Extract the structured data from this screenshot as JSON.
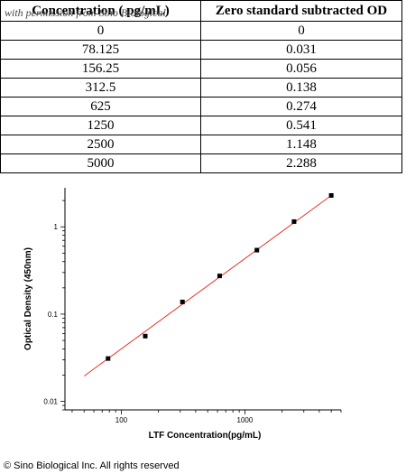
{
  "watermark": "with permission from Sino Biological",
  "table": {
    "headers": [
      "Concentration ( pg/mL)",
      "Zero standard subtracted OD"
    ],
    "rows": [
      [
        "0",
        "0"
      ],
      [
        "78.125",
        "0.031"
      ],
      [
        "156.25",
        "0.056"
      ],
      [
        "312.5",
        "0.138"
      ],
      [
        "625",
        "0.274"
      ],
      [
        "1250",
        "0.541"
      ],
      [
        "2500",
        "1.148"
      ],
      [
        "5000",
        "2.288"
      ]
    ]
  },
  "chart_data": {
    "type": "scatter",
    "scale": "log-log",
    "xlabel": "LTF Concentration(pg/mL)",
    "ylabel": "Optical Density (450nm)",
    "x_ticks": [
      100,
      1000
    ],
    "y_ticks": [
      0.01,
      0.1,
      1
    ],
    "xlim": [
      35,
      6000
    ],
    "ylim": [
      0.008,
      2.8
    ],
    "points": [
      {
        "x": 78.125,
        "y": 0.031
      },
      {
        "x": 156.25,
        "y": 0.056
      },
      {
        "x": 312.5,
        "y": 0.138
      },
      {
        "x": 625,
        "y": 0.274
      },
      {
        "x": 1250,
        "y": 0.541
      },
      {
        "x": 2500,
        "y": 1.148
      },
      {
        "x": 5000,
        "y": 2.288
      }
    ],
    "fit_line": {
      "x_range": [
        50,
        5000
      ],
      "color": "#e8322a"
    },
    "marker_color": "#000000",
    "grid": false
  },
  "copyright": "© Sino Biological Inc. All rights reserved"
}
